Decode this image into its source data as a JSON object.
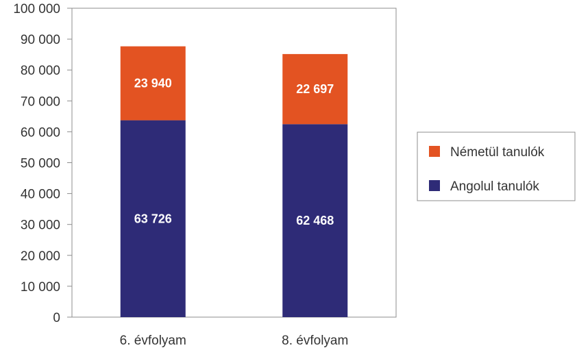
{
  "chart_data": {
    "type": "bar",
    "stacked": true,
    "categories": [
      "6. évfolyam",
      "8. évfolyam"
    ],
    "series": [
      {
        "name": "Angolul tanulók",
        "values": [
          63726,
          62468
        ],
        "labels": [
          "63 726",
          "62 468"
        ],
        "color": "#2e2b77"
      },
      {
        "name": "Németül tanulók",
        "values": [
          23940,
          22697
        ],
        "labels": [
          "23 940",
          "22 697"
        ],
        "color": "#e35322"
      }
    ],
    "ylim": [
      0,
      100000
    ],
    "yticks": [
      0,
      10000,
      20000,
      30000,
      40000,
      50000,
      60000,
      70000,
      80000,
      90000,
      100000
    ],
    "ytick_labels": [
      "0",
      "10 000",
      "20 000",
      "30 000",
      "40 000",
      "50 000",
      "60 000",
      "70 000",
      "80 000",
      "90 000",
      "100 000"
    ],
    "legend_position": "right",
    "grid": false,
    "title": "",
    "xlabel": "",
    "ylabel": ""
  }
}
